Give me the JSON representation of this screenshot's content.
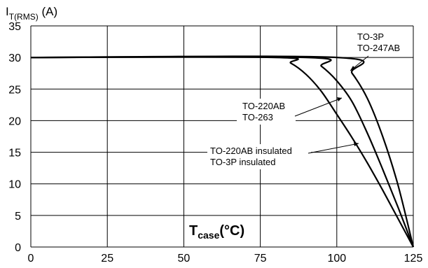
{
  "chart_data": {
    "type": "line",
    "xlim": [
      0,
      125
    ],
    "ylim": [
      0,
      35
    ],
    "x_ticks": [
      "0",
      "25",
      "50",
      "75",
      "100",
      "125"
    ],
    "y_ticks": [
      "0",
      "5",
      "10",
      "15",
      "20",
      "25",
      "30",
      "35"
    ],
    "grid": true,
    "ylabel": {
      "main": "I",
      "sub": "T(RMS)",
      "unit": " (A)"
    },
    "xlabel": {
      "main": "T",
      "sub": "case",
      "unit": "(°C)"
    },
    "series": [
      {
        "name": "TO-220AB insulated / TO-3P insulated",
        "points": [
          [
            0,
            30
          ],
          [
            80,
            30
          ],
          [
            85,
            29.1
          ],
          [
            90,
            27.3
          ],
          [
            95,
            24.6
          ],
          [
            100,
            21.0
          ],
          [
            105,
            17.3
          ],
          [
            110,
            13.3
          ],
          [
            115,
            9.0
          ],
          [
            120,
            4.5
          ],
          [
            125,
            0
          ]
        ]
      },
      {
        "name": "TO-220AB / TO-263",
        "points": [
          [
            0,
            30
          ],
          [
            90,
            30
          ],
          [
            95,
            28.6
          ],
          [
            100,
            26.3
          ],
          [
            105,
            23.0
          ],
          [
            110,
            18.0
          ],
          [
            115,
            12.3
          ],
          [
            120,
            6.3
          ],
          [
            125,
            0
          ]
        ]
      },
      {
        "name": "TO-3P / TO-247AB",
        "points": [
          [
            0,
            30
          ],
          [
            100,
            30
          ],
          [
            105,
            27.5
          ],
          [
            110,
            23.5
          ],
          [
            115,
            17.5
          ],
          [
            120,
            9.8
          ],
          [
            125,
            0
          ]
        ]
      }
    ],
    "annotations": [
      {
        "lines": [
          "TO-3P",
          "TO-247AB"
        ]
      },
      {
        "lines": [
          "TO-220AB",
          "TO-263"
        ]
      },
      {
        "lines": [
          "TO-220AB insulated",
          "TO-3P insulated"
        ]
      }
    ]
  }
}
